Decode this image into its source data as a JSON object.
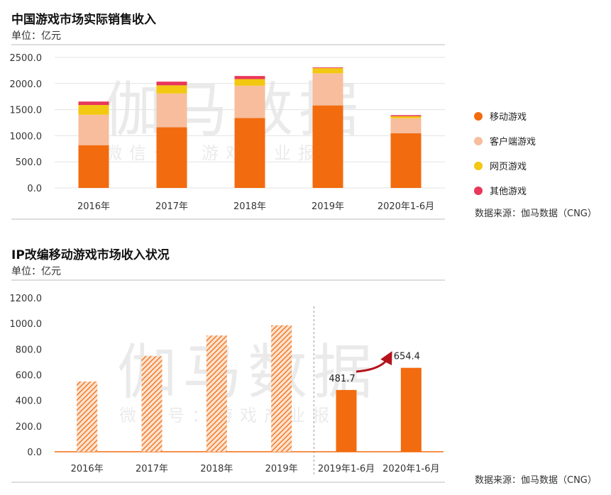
{
  "chart1": {
    "title": "中国游戏市场实际销售收入",
    "unit": "单位：亿元",
    "source": "数据来源：伽马数据（CNG）",
    "colors": {
      "mobile": "#f26b0f",
      "client": "#f7bd9c",
      "web": "#f2c811",
      "other": "#e8375a"
    }
  },
  "chart2": {
    "title": "IP改编移动游戏市场收入状况",
    "unit": "单位：亿元",
    "source": "数据来源：伽马数据（CNG）",
    "colors": {
      "bar": "#f26b0f",
      "hatch": "#f26b0f"
    }
  },
  "watermark": {
    "main": "伽马数据",
    "sub": "微信号：游戏产业报告"
  },
  "chart_data": [
    {
      "type": "bar",
      "stacked": true,
      "title": "中国游戏市场实际销售收入",
      "ylabel": "单位：亿元",
      "categories": [
        "2016年",
        "2017年",
        "2018年",
        "2019年",
        "2020年1-6月"
      ],
      "series": [
        {
          "name": "移动游戏",
          "color": "#f26b0f",
          "values": [
            819.2,
            1161.2,
            1339.6,
            1581.1,
            1046.7
          ]
        },
        {
          "name": "客户端游戏",
          "color": "#f7bd9c",
          "values": [
            582.5,
            648.6,
            619.6,
            615.1,
            289.0
          ]
        },
        {
          "name": "网页游戏",
          "color": "#f2c811",
          "values": [
            187.1,
            156.0,
            126.5,
            98.7,
            37.4
          ]
        },
        {
          "name": "其他游戏",
          "color": "#e8375a",
          "values": [
            66.2,
            70.5,
            58.6,
            13.1,
            21.4
          ]
        }
      ],
      "yticks": [
        "0.0",
        "500.0",
        "1000.0",
        "1500.0",
        "2000.0",
        "2500.0"
      ],
      "ylim": [
        0,
        2500
      ],
      "legend": "right"
    },
    {
      "type": "bar",
      "title": "IP改编移动游戏市场收入状况",
      "ylabel": "单位：亿元",
      "categories": [
        "2016年",
        "2017年",
        "2018年",
        "2019年",
        "2019年1-6月",
        "2020年1-6月"
      ],
      "values": [
        548.0,
        745.4,
        906.6,
        986.2,
        481.7,
        654.4
      ],
      "hatched": [
        true,
        true,
        true,
        true,
        false,
        false
      ],
      "data_labels": [
        "",
        "",
        "",
        "",
        "481.7",
        "654.4"
      ],
      "yticks": [
        "0.0",
        "200.0",
        "400.0",
        "600.0",
        "800.0",
        "1000.0",
        "1200.0"
      ],
      "ylim": [
        0,
        1200
      ]
    }
  ]
}
